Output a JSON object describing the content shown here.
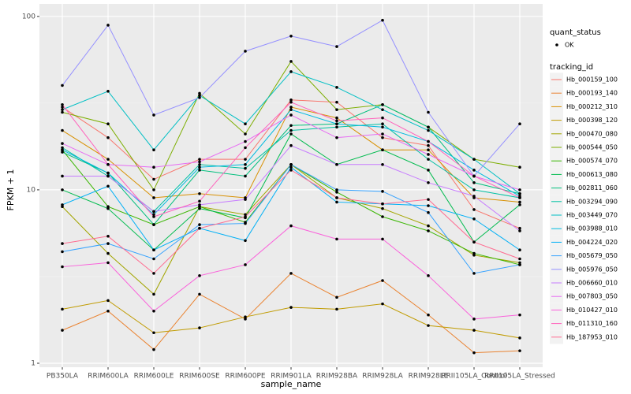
{
  "chart_data": {
    "type": "line",
    "x_label": "sample_name",
    "y_label": "FPKM + 1",
    "log_scale": true,
    "grid": true,
    "legend_position": "right",
    "point_color": "#000000",
    "shape_legend": {
      "title": "quant_status",
      "labels": [
        "OK"
      ]
    },
    "color_legend_title": "tracking_id",
    "categories": [
      "PB350LA",
      "RRIM600LA",
      "RRIM600LE",
      "RRIM600SE",
      "RRIM600PE",
      "RRIM901LA",
      "RRIM928BA",
      "RRIM928LA",
      "RRIM928LE",
      "RRII105LA_Control",
      "RRII105LA_Stressed"
    ],
    "ylim": [
      0.949,
      118
    ],
    "yticks": [
      1,
      10,
      100
    ],
    "series": [
      {
        "name": "Hb_000159_100",
        "color": "#F8766D",
        "values": [
          30,
          20,
          11.5,
          15,
          15,
          33,
          32,
          20,
          18,
          7.7,
          6
        ]
      },
      {
        "name": "Hb_000193_140",
        "color": "#EA8331",
        "values": [
          1.55,
          2.0,
          1.2,
          2.5,
          1.8,
          3.3,
          2.4,
          3.0,
          1.9,
          1.15,
          1.18
        ]
      },
      {
        "name": "Hb_000212_310",
        "color": "#D89000",
        "values": [
          22,
          15,
          9,
          9.5,
          9,
          30,
          26,
          17,
          17,
          9,
          8.5
        ]
      },
      {
        "name": "Hb_000398_120",
        "color": "#C09B00",
        "values": [
          2.05,
          2.3,
          1.5,
          1.6,
          1.85,
          2.1,
          2.05,
          2.2,
          1.65,
          1.55,
          1.4
        ]
      },
      {
        "name": "Hb_000470_080",
        "color": "#A3A500",
        "values": [
          8,
          4.3,
          2.5,
          8,
          7.2,
          14,
          9,
          7.8,
          6.2,
          4.2,
          3.8
        ]
      },
      {
        "name": "Hb_000544_050",
        "color": "#7CAE00",
        "values": [
          28,
          24,
          10,
          36,
          21,
          55,
          29,
          31,
          23,
          15,
          13.5
        ]
      },
      {
        "name": "Hb_000574_070",
        "color": "#39B600",
        "values": [
          17,
          8,
          6.3,
          8,
          6.5,
          14,
          9.7,
          7,
          5.8,
          4.3,
          3.7
        ]
      },
      {
        "name": "Hb_000613_080",
        "color": "#00BB4E",
        "values": [
          10,
          7.8,
          4.5,
          7.8,
          6.9,
          21,
          14,
          17,
          13,
          5,
          8.2
        ]
      },
      {
        "name": "Hb_002811_060",
        "color": "#00BF7D",
        "values": [
          16.5,
          12.5,
          6.3,
          13,
          12,
          23.5,
          24,
          31,
          23,
          11,
          9.5
        ]
      },
      {
        "name": "Hb_003294_090",
        "color": "#00C1A3",
        "values": [
          17.5,
          12,
          7.5,
          14,
          13.3,
          22,
          23,
          24,
          15,
          10,
          9
        ]
      },
      {
        "name": "Hb_003449_070",
        "color": "#00BFC4",
        "values": [
          29,
          37,
          17,
          35,
          24,
          48,
          39,
          29,
          22,
          15,
          9.5
        ]
      },
      {
        "name": "Hb_003988_010",
        "color": "#00BAE0",
        "values": [
          17,
          12.5,
          7.2,
          13.5,
          14,
          29,
          24,
          23,
          19,
          13,
          9.2
        ]
      },
      {
        "name": "Hb_004224_020",
        "color": "#00B0F6",
        "values": [
          8.2,
          10.5,
          4.5,
          6,
          5.1,
          13.5,
          8.5,
          8.3,
          8.1,
          6.8,
          4.5
        ]
      },
      {
        "name": "Hb_005679_050",
        "color": "#35A2FF",
        "values": [
          4.4,
          4.9,
          4.0,
          6.3,
          6.4,
          14,
          10,
          9.8,
          7.4,
          3.3,
          3.7
        ]
      },
      {
        "name": "Hb_005976_050",
        "color": "#9590FF",
        "values": [
          40,
          89,
          27,
          34,
          63,
          77,
          67,
          95,
          28,
          12,
          24
        ]
      },
      {
        "name": "Hb_006660_010",
        "color": "#C77CFF",
        "values": [
          12,
          12,
          7.5,
          8.2,
          8.8,
          18,
          14,
          14,
          11,
          9.2,
          5.8
        ]
      },
      {
        "name": "Hb_007803_050",
        "color": "#E76BF3",
        "values": [
          18.5,
          14,
          13.5,
          14.5,
          19,
          27,
          20,
          21,
          16,
          12,
          10
        ]
      },
      {
        "name": "Hb_010427_010",
        "color": "#FA62DB",
        "values": [
          3.6,
          3.8,
          2.0,
          3.2,
          3.7,
          6.2,
          5.2,
          5.2,
          3.2,
          1.8,
          1.9
        ]
      },
      {
        "name": "Hb_011310_160",
        "color": "#FF62BC",
        "values": [
          31,
          14,
          7,
          8.6,
          17.5,
          32,
          25,
          26,
          19,
          12,
          9
        ]
      },
      {
        "name": "Hb_187953_010",
        "color": "#FF6C91",
        "values": [
          4.9,
          5.4,
          3.3,
          6.0,
          7,
          13,
          9,
          8.3,
          8.8,
          5,
          4.0
        ]
      }
    ]
  }
}
